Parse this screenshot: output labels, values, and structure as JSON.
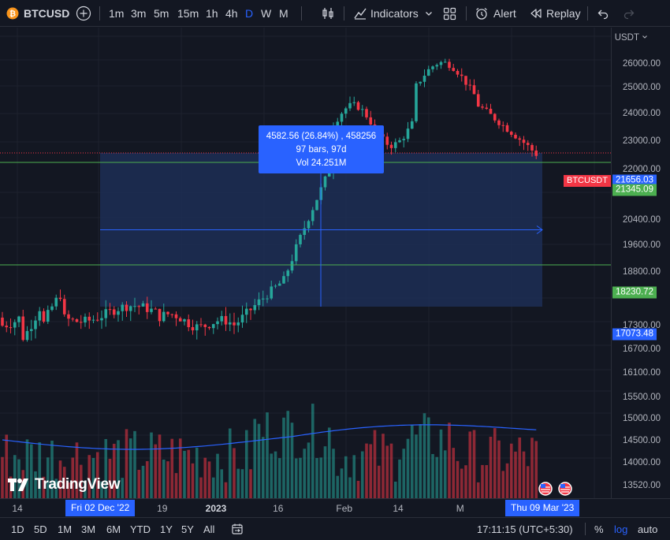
{
  "toolbar": {
    "symbol": "BTCUSD",
    "intervals": [
      "1m",
      "3m",
      "5m",
      "15m",
      "1h",
      "4h",
      "D",
      "W",
      "M"
    ],
    "active_interval": "D",
    "indicators_label": "Indicators",
    "alert_label": "Alert",
    "replay_label": "Replay"
  },
  "price_axis": {
    "currency": "USDT",
    "labels": [
      {
        "text": "26000.00",
        "value": 26000
      },
      {
        "text": "25000.00",
        "value": 25000
      },
      {
        "text": "24000.00",
        "value": 24000
      },
      {
        "text": "23000.00",
        "value": 23000
      },
      {
        "text": "22000.00",
        "value": 22000
      },
      {
        "text": "20400.00",
        "value": 20400
      },
      {
        "text": "19600.00",
        "value": 19600
      },
      {
        "text": "18800.00",
        "value": 18800
      },
      {
        "text": "17300.00",
        "value": 17300
      },
      {
        "text": "16700.00",
        "value": 16700
      },
      {
        "text": "16100.00",
        "value": 16100
      },
      {
        "text": "15500.00",
        "value": 15500
      },
      {
        "text": "15000.00",
        "value": 15000
      },
      {
        "text": "14500.00",
        "value": 14500
      },
      {
        "text": "14000.00",
        "value": 14000
      },
      {
        "text": "13520.00",
        "value": 13520
      }
    ],
    "tags": [
      {
        "text": "21656.03",
        "color": "#2962ff",
        "value": 21656
      },
      {
        "text": "21345.09",
        "color": "#4caf50",
        "value": 21345
      },
      {
        "text": "18230.72",
        "color": "#4caf50",
        "value": 18230
      },
      {
        "text": "17073.48",
        "color": "#2962ff",
        "value": 17073
      }
    ],
    "symbol_tag": "BTCUSDT"
  },
  "measure": {
    "line1": "4582.56 (26.84%) , 458256",
    "line2": "97 bars, 97d",
    "line3": "Vol 24.251M"
  },
  "time_axis": {
    "labels": [
      {
        "text": "14",
        "date": "2022-11-14",
        "bold": false
      },
      {
        "text": "19",
        "date": "2022-12-19",
        "bold": false
      },
      {
        "text": "2023",
        "date": "2023-01-01",
        "bold": true
      },
      {
        "text": "16",
        "date": "2023-01-16",
        "bold": false
      },
      {
        "text": "Feb",
        "date": "2023-02-01",
        "bold": false
      },
      {
        "text": "14",
        "date": "2023-02-14",
        "bold": false
      },
      {
        "text": "M",
        "date": "2023-03-01",
        "bold": false
      }
    ],
    "start_tag": "Fri 02 Dec '22",
    "end_tag": "Thu 09 Mar '23"
  },
  "bottom_bar": {
    "ranges": [
      "1D",
      "5D",
      "1M",
      "3M",
      "6M",
      "YTD",
      "1Y",
      "5Y",
      "All"
    ],
    "clock": "17:11:15 (UTC+5:30)",
    "percent_label": "%",
    "log_label": "log",
    "auto_label": "auto"
  },
  "logo_text": "TradingView",
  "colors": {
    "up": "#26a69a",
    "down": "#f23645",
    "accent": "#2962ff",
    "range": "#1e2f5a",
    "green_line": "#4caf50"
  }
}
